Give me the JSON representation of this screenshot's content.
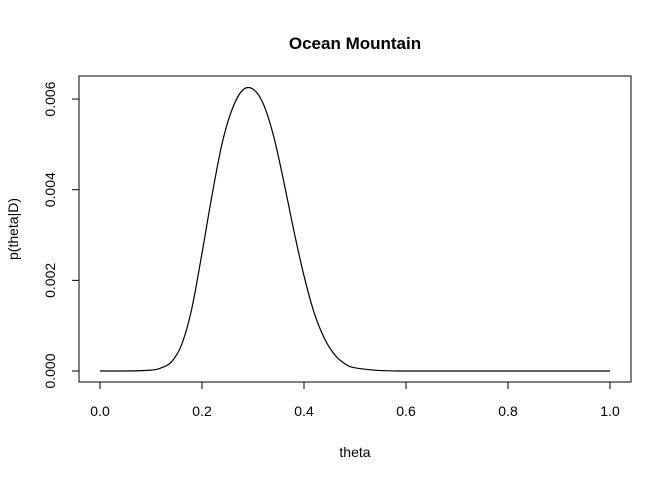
{
  "chart_data": {
    "type": "line",
    "title": "Ocean Mountain",
    "xlabel": "theta",
    "ylabel": "p(theta|D)",
    "xlim": [
      0.0,
      1.0
    ],
    "ylim": [
      0.0,
      0.0062
    ],
    "grid": false,
    "legend": "none",
    "x_ticks": [
      0.0,
      0.2,
      0.4,
      0.6,
      0.8,
      1.0
    ],
    "x_tick_labels": [
      "0.0",
      "0.2",
      "0.4",
      "0.6",
      "0.8",
      "1.0"
    ],
    "y_ticks": [
      0.0,
      0.002,
      0.004,
      0.006
    ],
    "y_tick_labels": [
      "0.000",
      "0.002",
      "0.004",
      "0.006"
    ],
    "series": [
      {
        "color": "#000000",
        "x": [
          0.0,
          0.05,
          0.1,
          0.12,
          0.14,
          0.16,
          0.18,
          0.2,
          0.22,
          0.24,
          0.26,
          0.28,
          0.3,
          0.32,
          0.34,
          0.36,
          0.38,
          0.4,
          0.42,
          0.44,
          0.46,
          0.48,
          0.5,
          0.55,
          0.6,
          0.7,
          0.8,
          0.9,
          1.0
        ],
        "y": [
          0.0,
          0.0,
          2e-05,
          7e-05,
          0.0002,
          0.00058,
          0.00138,
          0.0026,
          0.0039,
          0.00505,
          0.0058,
          0.0062,
          0.00622,
          0.0059,
          0.0052,
          0.0042,
          0.0031,
          0.0021,
          0.00128,
          0.00072,
          0.00036,
          0.00016,
          7e-05,
          1e-05,
          0.0,
          0.0,
          0.0,
          0.0,
          0.0
        ]
      }
    ]
  }
}
